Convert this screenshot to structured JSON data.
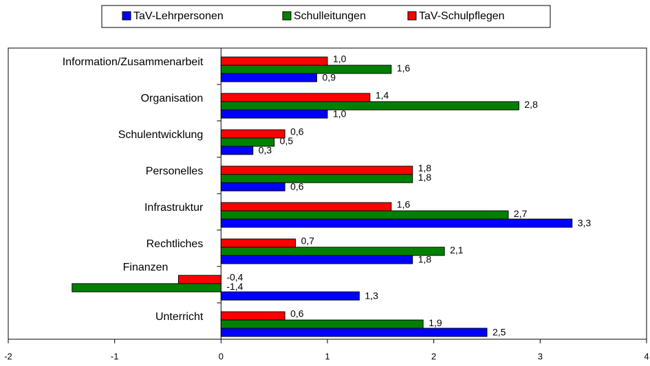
{
  "chart_data": {
    "type": "barh",
    "categories": [
      "Information/Zusammenarbeit",
      "Organisation",
      "Schulentwicklung",
      "Personelles",
      "Infrastruktur",
      "Rechtliches",
      "Finanzen",
      "Unterricht"
    ],
    "series": [
      {
        "name": "TaV-Lehrpersonen",
        "color": "#0000ff",
        "values": [
          0.9,
          1.0,
          0.3,
          0.6,
          3.3,
          1.8,
          1.3,
          2.5
        ],
        "value_labels": [
          "0,9",
          "1,0",
          "0,3",
          "0,6",
          "3,3",
          "1,8",
          "1,3",
          "2,5"
        ]
      },
      {
        "name": "Schulleitungen",
        "color": "#008000",
        "values": [
          1.6,
          2.8,
          0.5,
          1.8,
          2.7,
          2.1,
          -1.4,
          1.9
        ],
        "value_labels": [
          "1,6",
          "2,8",
          "0,5",
          "1,8",
          "2,7",
          "2,1",
          "-1,4",
          "1,9"
        ]
      },
      {
        "name": "TaV-Schulpflegen",
        "color": "#ff0000",
        "values": [
          1.0,
          1.4,
          0.6,
          1.8,
          1.6,
          0.7,
          -0.4,
          0.6
        ],
        "value_labels": [
          "1,0",
          "1,4",
          "0,6",
          "1,8",
          "1,6",
          "0,7",
          "-0,4",
          "0,6"
        ]
      }
    ],
    "xlim": [
      -2,
      4
    ],
    "xticks": [
      -2,
      -1,
      0,
      1,
      2,
      3,
      4
    ],
    "legend": "top"
  }
}
